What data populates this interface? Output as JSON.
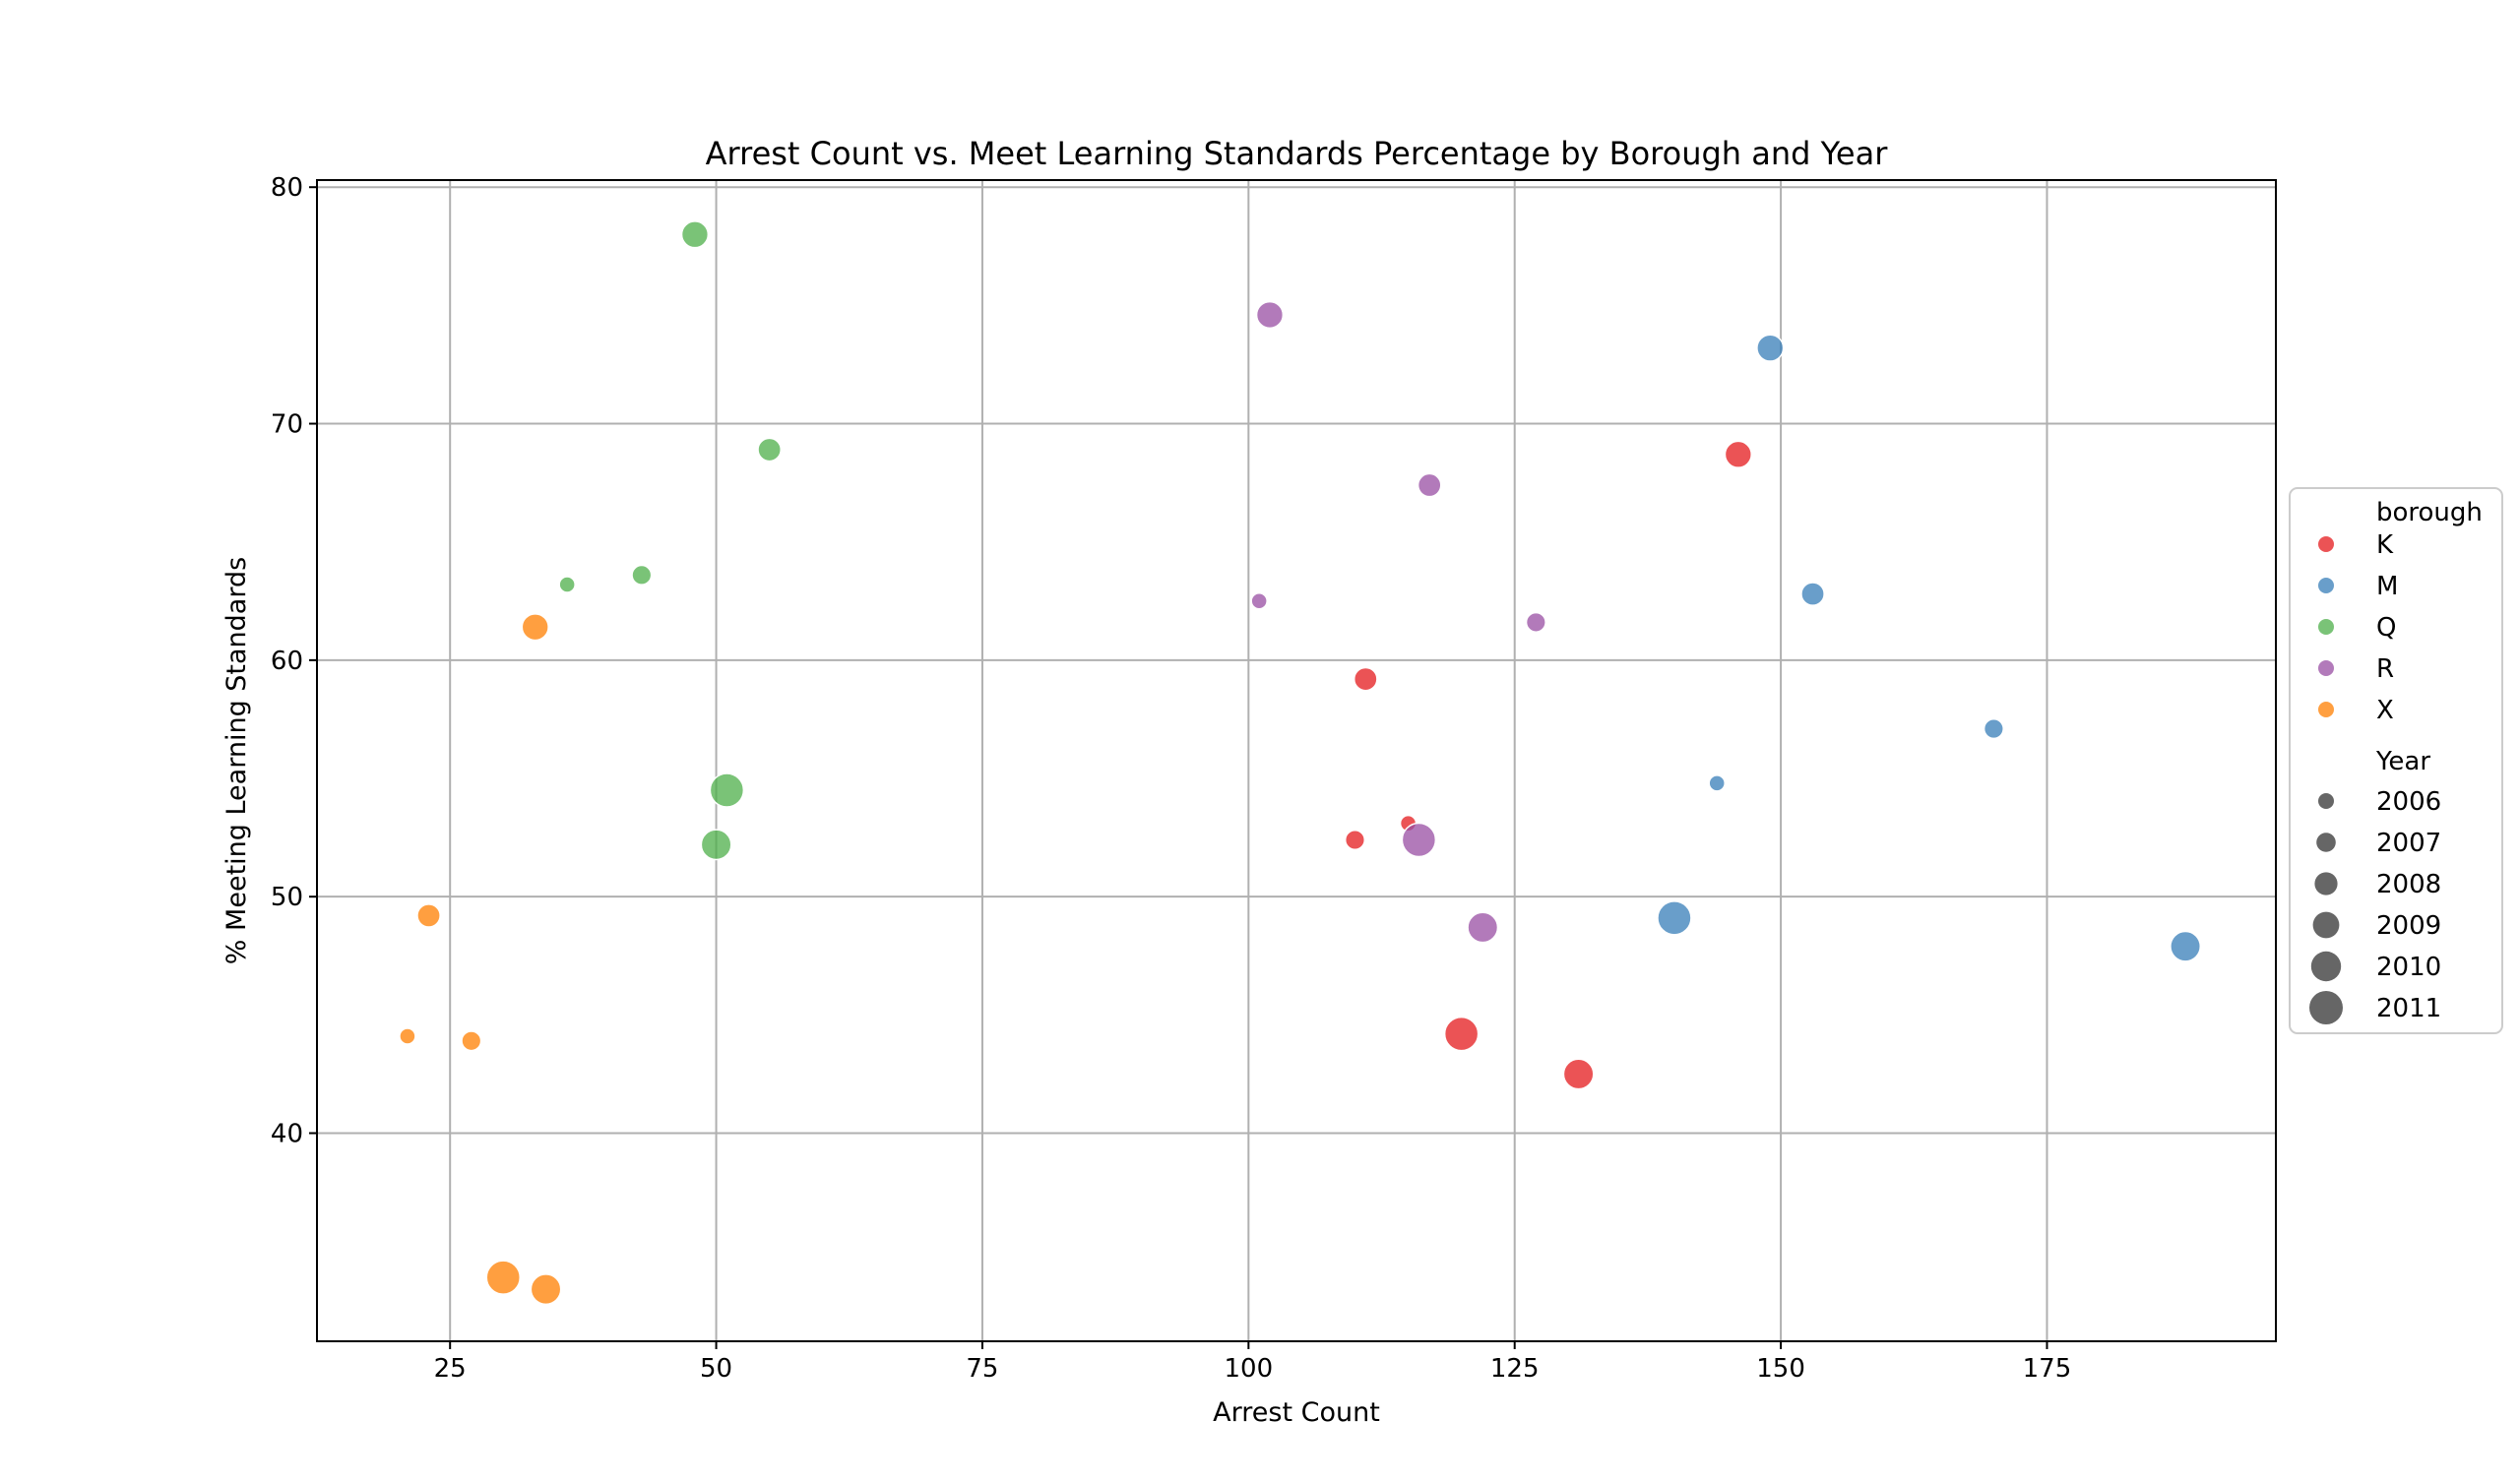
{
  "chart_data": {
    "type": "scatter",
    "title": "Arrest Count vs. Meet Learning Standards Percentage by Borough and Year",
    "xlabel": "Arrest Count",
    "ylabel": "% Meeting Learning Standards",
    "xlim": [
      12.5,
      196.5
    ],
    "ylim": [
      31.2,
      80.3
    ],
    "xticks": [
      25,
      50,
      75,
      100,
      125,
      150,
      175
    ],
    "yticks": [
      40,
      50,
      60,
      70,
      80
    ],
    "grid": true,
    "legend_placement": "right",
    "hue_title": "borough",
    "size_title": "Year",
    "marker_color": "#666666",
    "series": [
      {
        "name": "K",
        "color": "#e41a1c",
        "points": [
          {
            "x": 146,
            "y": 68.7,
            "year": 2009
          },
          {
            "x": 111,
            "y": 59.2,
            "year": 2008
          },
          {
            "x": 110,
            "y": 52.4,
            "year": 2007
          },
          {
            "x": 115,
            "y": 53.1,
            "year": 2006
          },
          {
            "x": 120,
            "y": 44.2,
            "year": 2011
          },
          {
            "x": 131,
            "y": 42.5,
            "year": 2010
          }
        ]
      },
      {
        "name": "M",
        "color": "#377eb8",
        "points": [
          {
            "x": 149,
            "y": 73.2,
            "year": 2009
          },
          {
            "x": 153,
            "y": 62.8,
            "year": 2008
          },
          {
            "x": 170,
            "y": 57.1,
            "year": 2007
          },
          {
            "x": 144,
            "y": 54.8,
            "year": 2006
          },
          {
            "x": 140,
            "y": 49.1,
            "year": 2011
          },
          {
            "x": 188,
            "y": 47.9,
            "year": 2010
          }
        ]
      },
      {
        "name": "Q",
        "color": "#4daf4a",
        "points": [
          {
            "x": 48,
            "y": 78.0,
            "year": 2009
          },
          {
            "x": 55,
            "y": 68.9,
            "year": 2008
          },
          {
            "x": 36,
            "y": 63.2,
            "year": 2006
          },
          {
            "x": 43,
            "y": 63.6,
            "year": 2007
          },
          {
            "x": 51,
            "y": 54.5,
            "year": 2011
          },
          {
            "x": 50,
            "y": 52.2,
            "year": 2010
          }
        ]
      },
      {
        "name": "R",
        "color": "#984ea3",
        "points": [
          {
            "x": 102,
            "y": 74.6,
            "year": 2009
          },
          {
            "x": 117,
            "y": 67.4,
            "year": 2008
          },
          {
            "x": 101,
            "y": 62.5,
            "year": 2006
          },
          {
            "x": 127,
            "y": 61.6,
            "year": 2007
          },
          {
            "x": 116,
            "y": 52.4,
            "year": 2011
          },
          {
            "x": 122,
            "y": 48.7,
            "year": 2010
          }
        ]
      },
      {
        "name": "X",
        "color": "#ff7f00",
        "points": [
          {
            "x": 33,
            "y": 61.4,
            "year": 2009
          },
          {
            "x": 23,
            "y": 49.2,
            "year": 2008
          },
          {
            "x": 21,
            "y": 44.1,
            "year": 2006
          },
          {
            "x": 27,
            "y": 43.9,
            "year": 2007
          },
          {
            "x": 30,
            "y": 33.9,
            "year": 2011
          },
          {
            "x": 34,
            "y": 33.4,
            "year": 2010
          }
        ]
      }
    ],
    "years": [
      2006,
      2007,
      2008,
      2009,
      2010,
      2011
    ]
  }
}
